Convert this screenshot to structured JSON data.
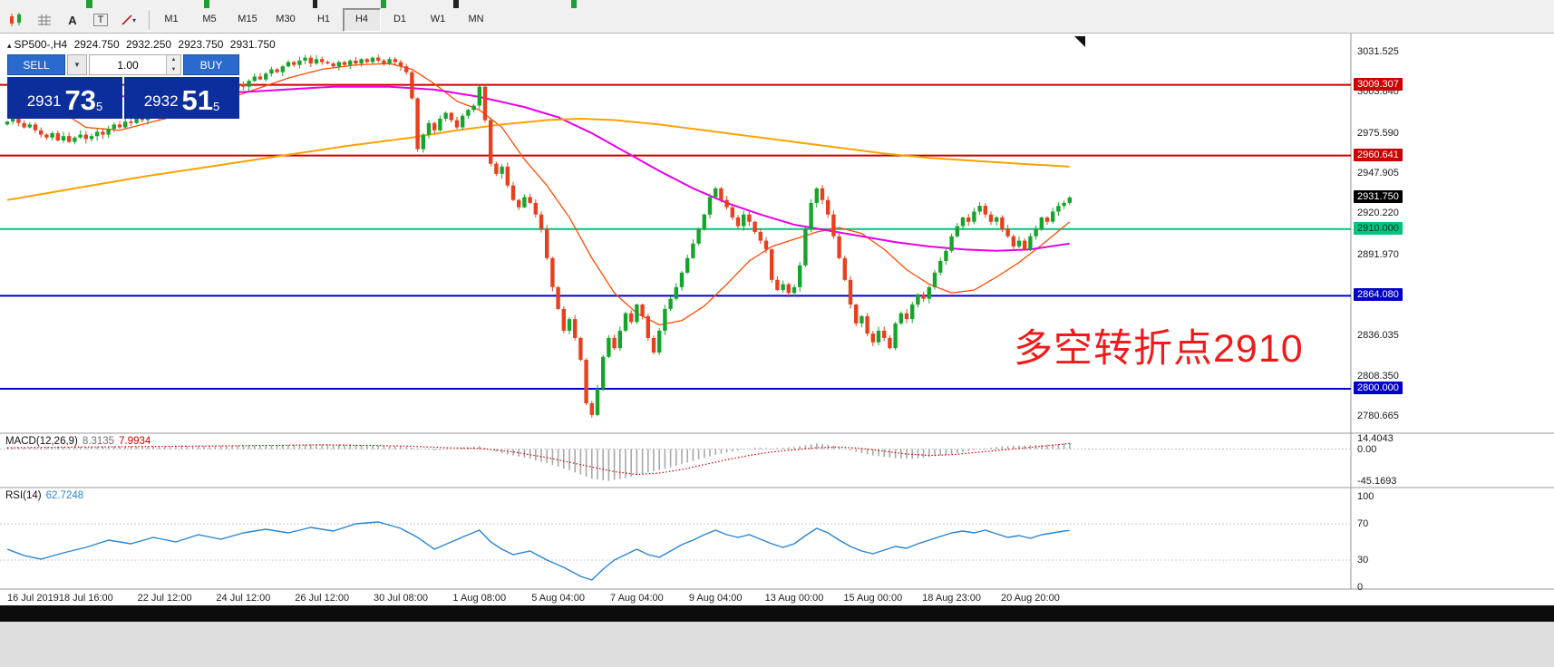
{
  "toolbar": {
    "timeframes": [
      "M1",
      "M5",
      "M15",
      "M30",
      "H1",
      "H4",
      "D1",
      "W1",
      "MN"
    ],
    "active_timeframe": "H4",
    "icons": [
      {
        "name": "indicators-icon"
      },
      {
        "name": "objects-grid-icon"
      },
      {
        "name": "text-A-icon",
        "glyph": "A"
      },
      {
        "name": "text-label-icon",
        "glyph": "T"
      },
      {
        "name": "shapes-dropdown-icon",
        "glyph": "▾"
      }
    ]
  },
  "chart_header": {
    "symbol_tf": "SP500-,H4",
    "open": "2924.750",
    "high": "2932.250",
    "low": "2923.750",
    "close": "2931.750"
  },
  "trade_panel": {
    "sell_label": "SELL",
    "buy_label": "BUY",
    "volume": "1.00",
    "sell_price": {
      "small": "2931",
      "big": "73",
      "sup": "5"
    },
    "buy_price": {
      "small": "2932",
      "big": "51",
      "sup": "5"
    },
    "tile_color": "#0c2e9c",
    "button_color": "#2a6ace"
  },
  "annotation": {
    "text": "多空转折点2910",
    "color": "#ef1b1b"
  },
  "chart_data": {
    "type": "candlestick",
    "symbol": "SP500-",
    "timeframe": "H4",
    "ylim": [
      2769.4,
      3045.3
    ],
    "candle_up": "#17a42d",
    "candle_down": "#e8401f",
    "closes": [
      2984,
      2986,
      2983,
      2980,
      2982,
      2978,
      2975,
      2973,
      2976,
      2971,
      2974,
      2970,
      2973,
      2975,
      2972,
      2974,
      2977,
      2975,
      2979,
      2982,
      2980,
      2984,
      2983,
      2986,
      2985,
      2988,
      2990,
      2987,
      2991,
      2993,
      2996,
      2994,
      2998,
      3001,
      2999,
      3003,
      3005,
      3002,
      3006,
      3009,
      3007,
      3010,
      3008,
      3012,
      3015,
      3013,
      3017,
      3020,
      3018,
      3022,
      3025,
      3023,
      3026,
      3028,
      3024,
      3027,
      3025,
      3024,
      3022,
      3025,
      3023,
      3026,
      3024,
      3027,
      3025,
      3028,
      3026,
      3024,
      3027,
      3025,
      3022,
      3018,
      3000,
      2965,
      2975,
      2983,
      2978,
      2986,
      2990,
      2985,
      2980,
      2988,
      2992,
      2995,
      3008,
      2985,
      2955,
      2948,
      2953,
      2940,
      2930,
      2925,
      2932,
      2928,
      2920,
      2910,
      2890,
      2870,
      2855,
      2840,
      2848,
      2835,
      2820,
      2790,
      2782,
      2800,
      2822,
      2835,
      2828,
      2840,
      2852,
      2846,
      2858,
      2850,
      2835,
      2825,
      2840,
      2855,
      2862,
      2870,
      2880,
      2890,
      2900,
      2910,
      2920,
      2932,
      2938,
      2930,
      2925,
      2918,
      2912,
      2920,
      2915,
      2908,
      2902,
      2896,
      2875,
      2868,
      2872,
      2866,
      2870,
      2885,
      2910,
      2928,
      2938,
      2930,
      2920,
      2905,
      2890,
      2875,
      2858,
      2845,
      2850,
      2838,
      2832,
      2840,
      2835,
      2828,
      2845,
      2852,
      2848,
      2858,
      2865,
      2862,
      2870,
      2880,
      2888,
      2895,
      2905,
      2912,
      2918,
      2915,
      2922,
      2926,
      2920,
      2915,
      2918,
      2910,
      2905,
      2898,
      2902,
      2896,
      2905,
      2910,
      2918,
      2915,
      2922,
      2926,
      2928,
      2931.75
    ],
    "time_labels": [
      {
        "i": 0,
        "label": "16 Jul 2019"
      },
      {
        "i": 14,
        "label": "18 Jul 16:00"
      },
      {
        "i": 28,
        "label": "22 Jul 12:00"
      },
      {
        "i": 42,
        "label": "24 Jul 12:00"
      },
      {
        "i": 56,
        "label": "26 Jul 12:00"
      },
      {
        "i": 70,
        "label": "30 Jul 08:00"
      },
      {
        "i": 84,
        "label": "1 Aug 08:00"
      },
      {
        "i": 98,
        "label": "5 Aug 04:00"
      },
      {
        "i": 112,
        "label": "7 Aug 04:00"
      },
      {
        "i": 126,
        "label": "9 Aug 04:00"
      },
      {
        "i": 140,
        "label": "13 Aug 00:00"
      },
      {
        "i": 154,
        "label": "15 Aug 00:00"
      },
      {
        "i": 168,
        "label": "18 Aug 23:00"
      },
      {
        "i": 182,
        "label": "20 Aug 20:00"
      }
    ],
    "price_ticks": [
      "3031.525",
      "3003.840",
      "2975.590",
      "2947.905",
      "2920.220",
      "2891.970",
      "2836.035",
      "2808.350",
      "2780.665"
    ],
    "price_lines": [
      {
        "price": 3009.307,
        "label": "3009.307",
        "color": "red"
      },
      {
        "price": 2960.641,
        "label": "2960.641",
        "color": "red"
      },
      {
        "price": 2910.0,
        "label": "2910.000",
        "color": "green"
      },
      {
        "price": 2864.08,
        "label": "2864.080",
        "color": "blue"
      },
      {
        "price": 2800.0,
        "label": "2800.000",
        "color": "blue"
      }
    ],
    "current_price": {
      "price": 2931.75,
      "label": "2931.750",
      "color": "black"
    },
    "line_colors": {
      "red": "#cc0000",
      "green": "#00c57e",
      "blue": "#0000c8",
      "black": "#000000"
    },
    "moving_averages": [
      {
        "name": "ma-fast",
        "color": "#ff4a00",
        "width": 1.3,
        "anchors": [
          [
            0,
            3000
          ],
          [
            8,
            2995
          ],
          [
            14,
            2980
          ],
          [
            20,
            2978
          ],
          [
            26,
            2984
          ],
          [
            32,
            2990
          ],
          [
            38,
            2998
          ],
          [
            44,
            3006
          ],
          [
            50,
            3014
          ],
          [
            56,
            3020
          ],
          [
            62,
            3023
          ],
          [
            68,
            3024
          ],
          [
            72,
            3020
          ],
          [
            76,
            3010
          ],
          [
            80,
            2998
          ],
          [
            84,
            2992
          ],
          [
            88,
            2980
          ],
          [
            92,
            2958
          ],
          [
            96,
            2940
          ],
          [
            100,
            2918
          ],
          [
            104,
            2890
          ],
          [
            108,
            2866
          ],
          [
            112,
            2852
          ],
          [
            116,
            2844
          ],
          [
            120,
            2847
          ],
          [
            124,
            2857
          ],
          [
            128,
            2872
          ],
          [
            132,
            2888
          ],
          [
            136,
            2898
          ],
          [
            140,
            2903
          ],
          [
            144,
            2908
          ],
          [
            148,
            2911
          ],
          [
            152,
            2907
          ],
          [
            156,
            2896
          ],
          [
            160,
            2882
          ],
          [
            164,
            2872
          ],
          [
            168,
            2866
          ],
          [
            172,
            2868
          ],
          [
            176,
            2877
          ],
          [
            180,
            2887
          ],
          [
            184,
            2899
          ],
          [
            189,
            2915
          ]
        ]
      },
      {
        "name": "ma-magenta",
        "color": "#e800e8",
        "width": 2,
        "anchors": [
          [
            0,
            3002
          ],
          [
            15,
            3001
          ],
          [
            30,
            3002
          ],
          [
            45,
            3005
          ],
          [
            58,
            3008
          ],
          [
            68,
            3008
          ],
          [
            76,
            3006
          ],
          [
            84,
            3001
          ],
          [
            92,
            2994
          ],
          [
            98,
            2987
          ],
          [
            104,
            2976
          ],
          [
            110,
            2963
          ],
          [
            116,
            2950
          ],
          [
            122,
            2938
          ],
          [
            128,
            2928
          ],
          [
            134,
            2920
          ],
          [
            140,
            2913
          ],
          [
            146,
            2909
          ],
          [
            152,
            2905
          ],
          [
            158,
            2901
          ],
          [
            164,
            2898
          ],
          [
            170,
            2896
          ],
          [
            176,
            2895
          ],
          [
            182,
            2896
          ],
          [
            189,
            2900
          ]
        ]
      },
      {
        "name": "ma-orange",
        "color": "#ffa200",
        "width": 2,
        "anchors": [
          [
            0,
            2930
          ],
          [
            12,
            2938
          ],
          [
            24,
            2946
          ],
          [
            36,
            2953
          ],
          [
            48,
            2960
          ],
          [
            60,
            2967
          ],
          [
            72,
            2973
          ],
          [
            80,
            2978
          ],
          [
            88,
            2982
          ],
          [
            96,
            2985
          ],
          [
            102,
            2986
          ],
          [
            108,
            2985
          ],
          [
            116,
            2982
          ],
          [
            124,
            2978
          ],
          [
            132,
            2974
          ],
          [
            140,
            2970
          ],
          [
            148,
            2966
          ],
          [
            156,
            2962
          ],
          [
            164,
            2959
          ],
          [
            172,
            2957
          ],
          [
            180,
            2955
          ],
          [
            189,
            2953
          ]
        ]
      }
    ],
    "macd": {
      "label": "MACD(12,26,9)",
      "value_main": "8.3135",
      "value_signal": "7.9934",
      "ylim": [
        -52,
        20
      ],
      "ticks": [
        {
          "v": 14.4043,
          "label": "14.4043"
        },
        {
          "v": 0,
          "label": "0.00"
        },
        {
          "v": -45.1693,
          "label": "-45.1693"
        }
      ],
      "hist_color": "#a8a8a8",
      "signal_color": "#d00000",
      "hist_anchors": [
        [
          0,
          2
        ],
        [
          10,
          3
        ],
        [
          20,
          4
        ],
        [
          30,
          4
        ],
        [
          40,
          5
        ],
        [
          50,
          6
        ],
        [
          56,
          7
        ],
        [
          62,
          6
        ],
        [
          70,
          4
        ],
        [
          76,
          -2
        ],
        [
          80,
          1
        ],
        [
          84,
          4
        ],
        [
          88,
          -6
        ],
        [
          92,
          -12
        ],
        [
          96,
          -20
        ],
        [
          100,
          -30
        ],
        [
          104,
          -42
        ],
        [
          107,
          -45
        ],
        [
          110,
          -41
        ],
        [
          114,
          -33
        ],
        [
          118,
          -26
        ],
        [
          122,
          -17
        ],
        [
          126,
          -8
        ],
        [
          130,
          -2
        ],
        [
          133,
          2
        ],
        [
          136,
          1
        ],
        [
          140,
          3
        ],
        [
          144,
          8
        ],
        [
          147,
          5
        ],
        [
          150,
          -2
        ],
        [
          154,
          -9
        ],
        [
          158,
          -13
        ],
        [
          161,
          -14
        ],
        [
          164,
          -11
        ],
        [
          168,
          -7
        ],
        [
          171,
          -3
        ],
        [
          174,
          1
        ],
        [
          177,
          4
        ],
        [
          180,
          5
        ],
        [
          184,
          6
        ],
        [
          187,
          7
        ],
        [
          189,
          8.3
        ]
      ],
      "signal_anchors": [
        [
          0,
          2
        ],
        [
          15,
          3
        ],
        [
          30,
          4
        ],
        [
          45,
          5
        ],
        [
          56,
          6
        ],
        [
          66,
          5
        ],
        [
          72,
          4
        ],
        [
          78,
          2
        ],
        [
          84,
          1
        ],
        [
          90,
          -4
        ],
        [
          96,
          -12
        ],
        [
          102,
          -22
        ],
        [
          108,
          -32
        ],
        [
          112,
          -36
        ],
        [
          116,
          -34
        ],
        [
          120,
          -29
        ],
        [
          124,
          -22
        ],
        [
          128,
          -15
        ],
        [
          132,
          -9
        ],
        [
          136,
          -4
        ],
        [
          140,
          -1
        ],
        [
          144,
          2
        ],
        [
          148,
          3
        ],
        [
          152,
          1
        ],
        [
          156,
          -3
        ],
        [
          160,
          -7
        ],
        [
          164,
          -9
        ],
        [
          168,
          -8
        ],
        [
          172,
          -5
        ],
        [
          176,
          -2
        ],
        [
          180,
          1
        ],
        [
          184,
          4
        ],
        [
          189,
          7.99
        ]
      ]
    },
    "rsi": {
      "label": "RSI(14)",
      "value": "62.7248",
      "color": "#2a84d2",
      "levels": [
        "100",
        "70",
        "30",
        "0"
      ],
      "dotted_levels": [
        70,
        30
      ],
      "anchors": [
        [
          0,
          42
        ],
        [
          3,
          35
        ],
        [
          6,
          31
        ],
        [
          10,
          38
        ],
        [
          14,
          44
        ],
        [
          18,
          52
        ],
        [
          22,
          48
        ],
        [
          26,
          55
        ],
        [
          30,
          50
        ],
        [
          34,
          58
        ],
        [
          38,
          53
        ],
        [
          42,
          60
        ],
        [
          46,
          64
        ],
        [
          50,
          60
        ],
        [
          54,
          66
        ],
        [
          58,
          62
        ],
        [
          62,
          70
        ],
        [
          66,
          72
        ],
        [
          70,
          65
        ],
        [
          73,
          55
        ],
        [
          76,
          42
        ],
        [
          79,
          50
        ],
        [
          82,
          58
        ],
        [
          84,
          63
        ],
        [
          86,
          50
        ],
        [
          88,
          42
        ],
        [
          90,
          36
        ],
        [
          93,
          40
        ],
        [
          96,
          30
        ],
        [
          99,
          22
        ],
        [
          102,
          12
        ],
        [
          104,
          8
        ],
        [
          106,
          20
        ],
        [
          108,
          30
        ],
        [
          110,
          36
        ],
        [
          112,
          42
        ],
        [
          114,
          36
        ],
        [
          116,
          33
        ],
        [
          118,
          40
        ],
        [
          120,
          47
        ],
        [
          122,
          52
        ],
        [
          124,
          58
        ],
        [
          126,
          63
        ],
        [
          128,
          58
        ],
        [
          130,
          55
        ],
        [
          132,
          58
        ],
        [
          134,
          53
        ],
        [
          136,
          48
        ],
        [
          138,
          44
        ],
        [
          140,
          48
        ],
        [
          142,
          57
        ],
        [
          144,
          65
        ],
        [
          146,
          60
        ],
        [
          148,
          52
        ],
        [
          150,
          45
        ],
        [
          152,
          40
        ],
        [
          154,
          37
        ],
        [
          156,
          41
        ],
        [
          158,
          45
        ],
        [
          160,
          43
        ],
        [
          162,
          48
        ],
        [
          164,
          52
        ],
        [
          166,
          56
        ],
        [
          168,
          60
        ],
        [
          170,
          62
        ],
        [
          172,
          60
        ],
        [
          174,
          63
        ],
        [
          176,
          59
        ],
        [
          178,
          55
        ],
        [
          180,
          57
        ],
        [
          182,
          54
        ],
        [
          184,
          58
        ],
        [
          186,
          60
        ],
        [
          188,
          62
        ],
        [
          189,
          62.7
        ]
      ]
    }
  }
}
